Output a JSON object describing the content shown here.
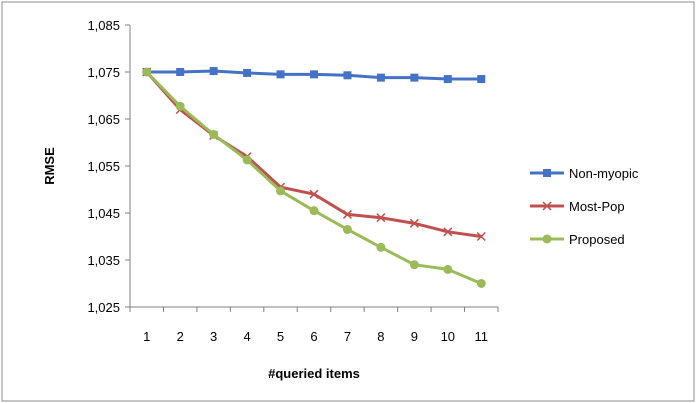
{
  "chart_data": {
    "type": "line",
    "title": "",
    "xlabel": "#queried items",
    "ylabel": "RMSE",
    "categories": [
      "1",
      "2",
      "3",
      "4",
      "5",
      "6",
      "7",
      "8",
      "9",
      "10",
      "11"
    ],
    "ylim": [
      1.025,
      1.085
    ],
    "yticks": [
      1.025,
      1.035,
      1.045,
      1.055,
      1.065,
      1.075,
      1.085
    ],
    "ytick_labels": [
      "1,025",
      "1,035",
      "1,045",
      "1,055",
      "1,065",
      "1,075",
      "1,085"
    ],
    "grid": false,
    "legend_position": "right",
    "series": [
      {
        "name": "Non-myopic",
        "marker": "square",
        "color": "#4472C4",
        "values": [
          1.075,
          1.075,
          1.0752,
          1.0748,
          1.0745,
          1.0745,
          1.0743,
          1.0738,
          1.0738,
          1.0735,
          1.0735
        ]
      },
      {
        "name": "Most-Pop",
        "marker": "x",
        "color": "#C0504D",
        "values": [
          1.075,
          1.067,
          1.0615,
          1.057,
          1.0505,
          1.049,
          1.0447,
          1.044,
          1.0428,
          1.041,
          1.04
        ]
      },
      {
        "name": "Proposed",
        "marker": "circle",
        "color": "#9BBB59",
        "values": [
          1.075,
          1.0677,
          1.0617,
          1.0563,
          1.0497,
          1.0455,
          1.0415,
          1.0377,
          1.034,
          1.033,
          1.03
        ]
      }
    ]
  }
}
